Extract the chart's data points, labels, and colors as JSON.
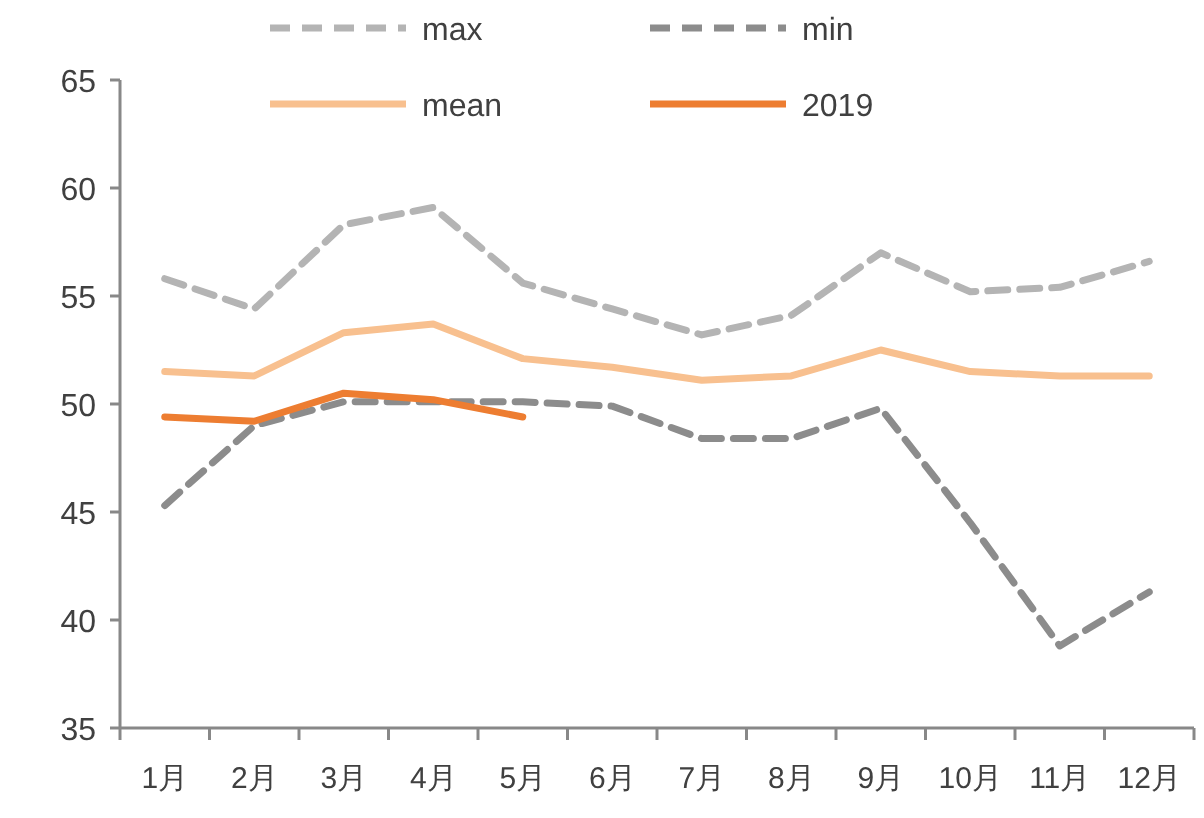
{
  "chart_data": {
    "type": "line",
    "categories": [
      "1月",
      "2月",
      "3月",
      "4月",
      "5月",
      "6月",
      "7月",
      "8月",
      "9月",
      "10月",
      "11月",
      "12月"
    ],
    "series": [
      {
        "name": "max",
        "color": "#b4b4b4",
        "line_style": "dashed",
        "values": [
          55.8,
          54.4,
          58.3,
          59.1,
          55.6,
          54.4,
          53.2,
          54.1,
          57.0,
          55.2,
          55.4,
          56.6
        ]
      },
      {
        "name": "min",
        "color": "#8c8c8c",
        "line_style": "dashed",
        "values": [
          45.3,
          49.0,
          50.1,
          50.1,
          50.1,
          49.9,
          48.4,
          48.4,
          49.8,
          44.5,
          38.8,
          41.3
        ]
      },
      {
        "name": "mean",
        "color": "#f8c08f",
        "line_style": "solid",
        "values": [
          51.5,
          51.3,
          53.3,
          53.7,
          52.1,
          51.7,
          51.1,
          51.3,
          52.5,
          51.5,
          51.3,
          51.3
        ]
      },
      {
        "name": "2019",
        "color": "#ed7d31",
        "line_style": "solid",
        "values": [
          49.4,
          49.2,
          50.5,
          50.2,
          49.4,
          null,
          null,
          null,
          null,
          null,
          null,
          null
        ]
      }
    ],
    "ylim": [
      35,
      65
    ],
    "yticks": [
      35,
      40,
      45,
      50,
      55,
      60,
      65
    ],
    "legend": "top",
    "grid": false
  }
}
